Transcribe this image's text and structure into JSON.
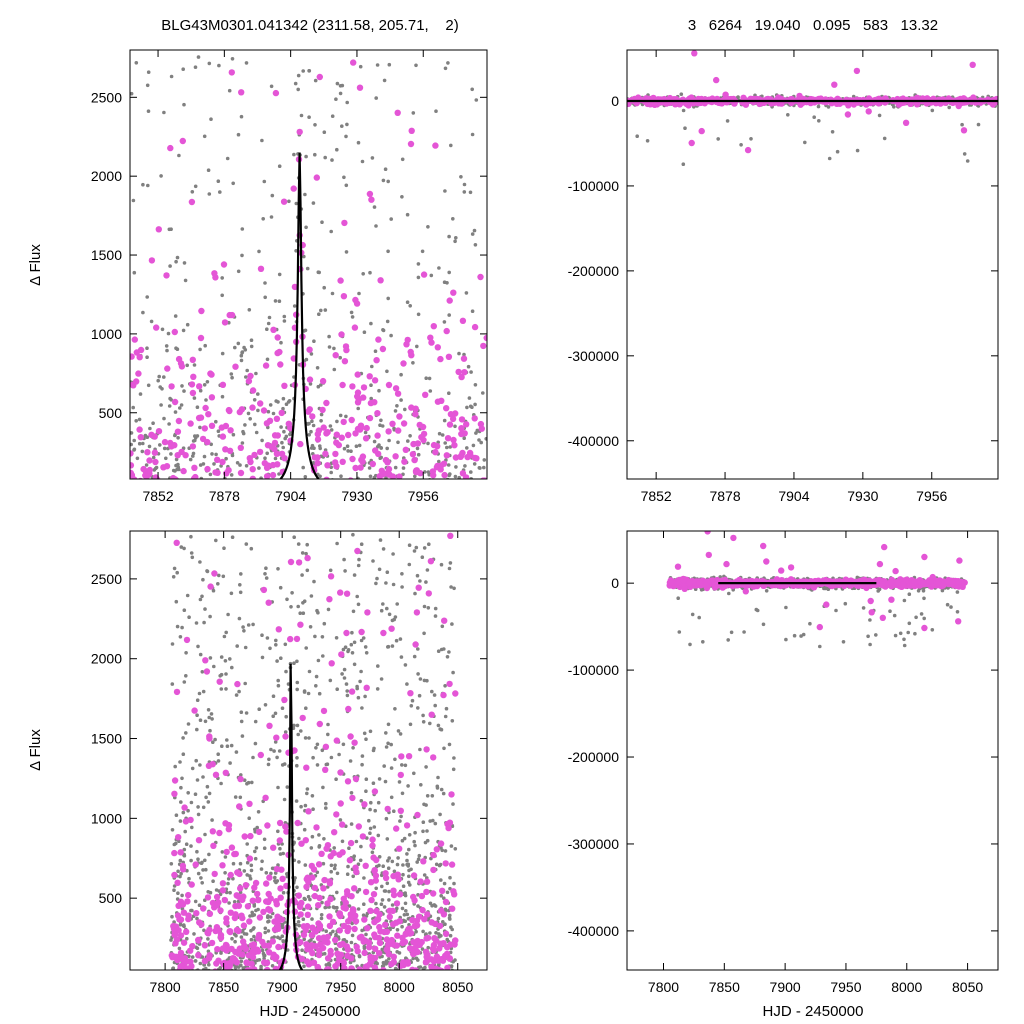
{
  "header": {
    "left_title": "BLG43M0301.041342 (2311.58, 205.71,    2)",
    "right_title": "3   6264   19.040   0.095   583   13.32"
  },
  "colors": {
    "data_gray": "#808080",
    "data_magenta": "#e455d6",
    "model": "#000000"
  },
  "chart_data": [
    {
      "id": "top-left",
      "type": "scatter",
      "title": "BLG43M0301.041342 (2311.58, 205.71,    2)",
      "xlabel": "",
      "ylabel": "Δ Flux",
      "xlim": [
        7841,
        7981
      ],
      "ylim": [
        80,
        2800
      ],
      "xticks": [
        7852,
        7878,
        7904,
        7930,
        7956
      ],
      "yticks": [
        500,
        1000,
        1500,
        2000,
        2500
      ],
      "model": {
        "t0": 7907.5,
        "tE": 9.8,
        "fs": 2150
      },
      "series": []
    },
    {
      "id": "top-right",
      "type": "scatter",
      "title": "3   6264   19.040   0.095   583   13.32",
      "xlabel": "",
      "ylabel": "",
      "xlim": [
        7841,
        7981
      ],
      "ylim": [
        -445000,
        60000
      ],
      "xticks": [
        7852,
        7878,
        7904,
        7930,
        7956
      ],
      "yticks": [
        0,
        -100000,
        -200000,
        -300000,
        -400000
      ],
      "model_flat": 0,
      "series": []
    },
    {
      "id": "bottom-left",
      "type": "scatter",
      "title": "",
      "xlabel": "HJD - 2450000",
      "ylabel": "Δ Flux",
      "xlim": [
        7770,
        8075
      ],
      "ylim": [
        50,
        2800
      ],
      "xticks": [
        7800,
        7850,
        7900,
        7950,
        8000,
        8050
      ],
      "yticks": [
        500,
        1000,
        1500,
        2000,
        2500
      ],
      "model": {
        "t0": 7907.5,
        "tE": 9.8,
        "fs": 2150
      },
      "series": []
    },
    {
      "id": "bottom-right",
      "type": "scatter",
      "title": "",
      "xlabel": "HJD - 2450000",
      "ylabel": "",
      "xlim": [
        7770,
        8075
      ],
      "ylim": [
        -445000,
        60000
      ],
      "xticks": [
        7800,
        7850,
        7900,
        7950,
        8000,
        8050
      ],
      "yticks": [
        0,
        -100000,
        -200000,
        -300000,
        -400000
      ],
      "model_flat": 0,
      "series": []
    }
  ]
}
